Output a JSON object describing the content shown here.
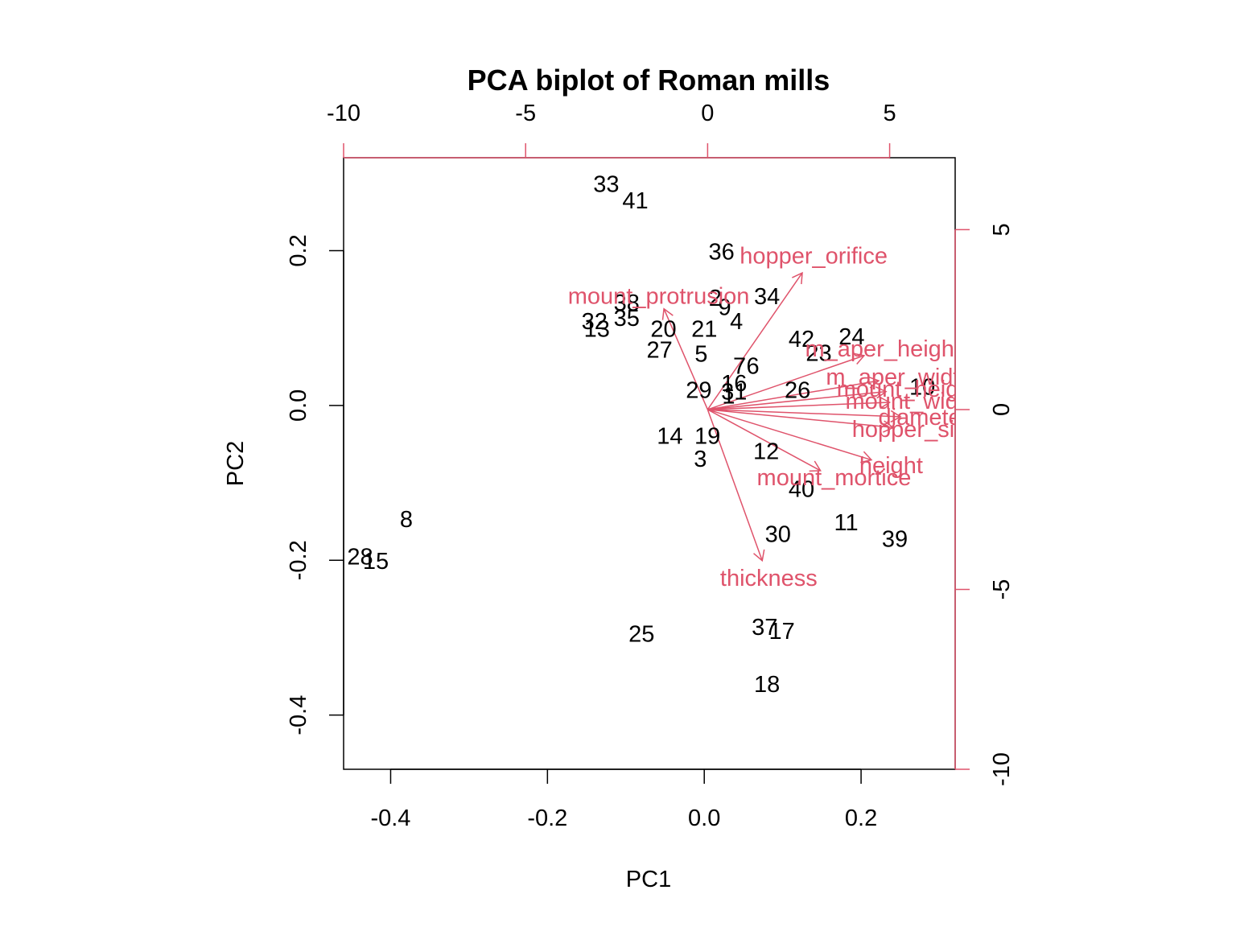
{
  "colors": {
    "axis": "#000000",
    "variable": "#DF536B",
    "background": "#FFFFFF"
  },
  "chart_data": {
    "type": "scatter",
    "subtype": "pca-biplot",
    "title": "PCA biplot of Roman mills",
    "xlabel": "PC1",
    "ylabel": "PC2",
    "xlim": [
      -0.46,
      0.32
    ],
    "ylim": [
      -0.47,
      0.32
    ],
    "x_ticks": [
      "-0.4",
      "-0.2",
      "0.0",
      "0.2"
    ],
    "y_ticks": [
      "-0.4",
      "-0.2",
      "0.0",
      "0.2"
    ],
    "secondary_xlim": [
      -10,
      6.8
    ],
    "secondary_ylim": [
      -10,
      7
    ],
    "secondary_x_ticks": [
      "-10",
      "-5",
      "0",
      "5"
    ],
    "secondary_y_ticks": [
      "-10",
      "-5",
      "0",
      "5"
    ],
    "grid": false,
    "observations": [
      {
        "label": "33",
        "x": -0.125,
        "y": 0.285
      },
      {
        "label": "41",
        "x": -0.088,
        "y": 0.264
      },
      {
        "label": "36",
        "x": 0.022,
        "y": 0.198
      },
      {
        "label": "34",
        "x": 0.08,
        "y": 0.14
      },
      {
        "label": "2",
        "x": 0.014,
        "y": 0.138
      },
      {
        "label": "9",
        "x": 0.026,
        "y": 0.126
      },
      {
        "label": "38",
        "x": -0.099,
        "y": 0.132
      },
      {
        "label": "4",
        "x": 0.041,
        "y": 0.108
      },
      {
        "label": "35",
        "x": -0.099,
        "y": 0.112
      },
      {
        "label": "32",
        "x": -0.14,
        "y": 0.108
      },
      {
        "label": "13",
        "x": -0.137,
        "y": 0.098
      },
      {
        "label": "20",
        "x": -0.052,
        "y": 0.098
      },
      {
        "label": "21",
        "x": 0.0,
        "y": 0.098
      },
      {
        "label": "42",
        "x": 0.124,
        "y": 0.085
      },
      {
        "label": "24",
        "x": 0.188,
        "y": 0.088
      },
      {
        "label": "27",
        "x": -0.057,
        "y": 0.071
      },
      {
        "label": "23",
        "x": 0.146,
        "y": 0.067
      },
      {
        "label": "5",
        "x": -0.004,
        "y": 0.066
      },
      {
        "label": "7",
        "x": 0.045,
        "y": 0.05
      },
      {
        "label": "6",
        "x": 0.062,
        "y": 0.05
      },
      {
        "label": "16",
        "x": 0.038,
        "y": 0.028
      },
      {
        "label": "26",
        "x": 0.119,
        "y": 0.019
      },
      {
        "label": "10",
        "x": 0.278,
        "y": 0.023
      },
      {
        "label": "29",
        "x": -0.007,
        "y": 0.019
      },
      {
        "label": "31",
        "x": 0.038,
        "y": 0.017
      },
      {
        "label": "1",
        "x": 0.031,
        "y": 0.012
      },
      {
        "label": "14",
        "x": -0.044,
        "y": -0.04
      },
      {
        "label": "19",
        "x": 0.004,
        "y": -0.04
      },
      {
        "label": "12",
        "x": 0.079,
        "y": -0.06
      },
      {
        "label": "3",
        "x": -0.005,
        "y": -0.07
      },
      {
        "label": "40",
        "x": 0.124,
        "y": -0.109
      },
      {
        "label": "11",
        "x": 0.181,
        "y": -0.152
      },
      {
        "label": "39",
        "x": 0.243,
        "y": -0.173
      },
      {
        "label": "30",
        "x": 0.094,
        "y": -0.167
      },
      {
        "label": "8",
        "x": -0.38,
        "y": -0.148
      },
      {
        "label": "28",
        "x": -0.439,
        "y": -0.196
      },
      {
        "label": "15",
        "x": -0.419,
        "y": -0.202
      },
      {
        "label": "25",
        "x": -0.08,
        "y": -0.296
      },
      {
        "label": "37",
        "x": 0.077,
        "y": -0.287
      },
      {
        "label": "17",
        "x": 0.099,
        "y": -0.292
      },
      {
        "label": "18",
        "x": 0.08,
        "y": -0.361
      }
    ],
    "variables": [
      {
        "label": "hopper_orifice",
        "x": 2.6,
        "y": 3.8
      },
      {
        "label": "mount_protrusion",
        "x": -1.2,
        "y": 2.8
      },
      {
        "label": "m_aper_height",
        "x": 4.3,
        "y": 1.5
      },
      {
        "label": "m_aper_width",
        "x": 4.7,
        "y": 0.8
      },
      {
        "label": "mount_height",
        "x": 4.9,
        "y": 0.5
      },
      {
        "label": "mount_width",
        "x": 5.0,
        "y": 0.2
      },
      {
        "label": "diameter",
        "x": 5.3,
        "y": -0.2
      },
      {
        "label": "hopper_size",
        "x": 5.1,
        "y": -0.5
      },
      {
        "label": "height",
        "x": 4.5,
        "y": -1.4
      },
      {
        "label": "mount_mortice",
        "x": 3.1,
        "y": -1.7
      },
      {
        "label": "thickness",
        "x": 1.5,
        "y": -4.2
      }
    ]
  }
}
